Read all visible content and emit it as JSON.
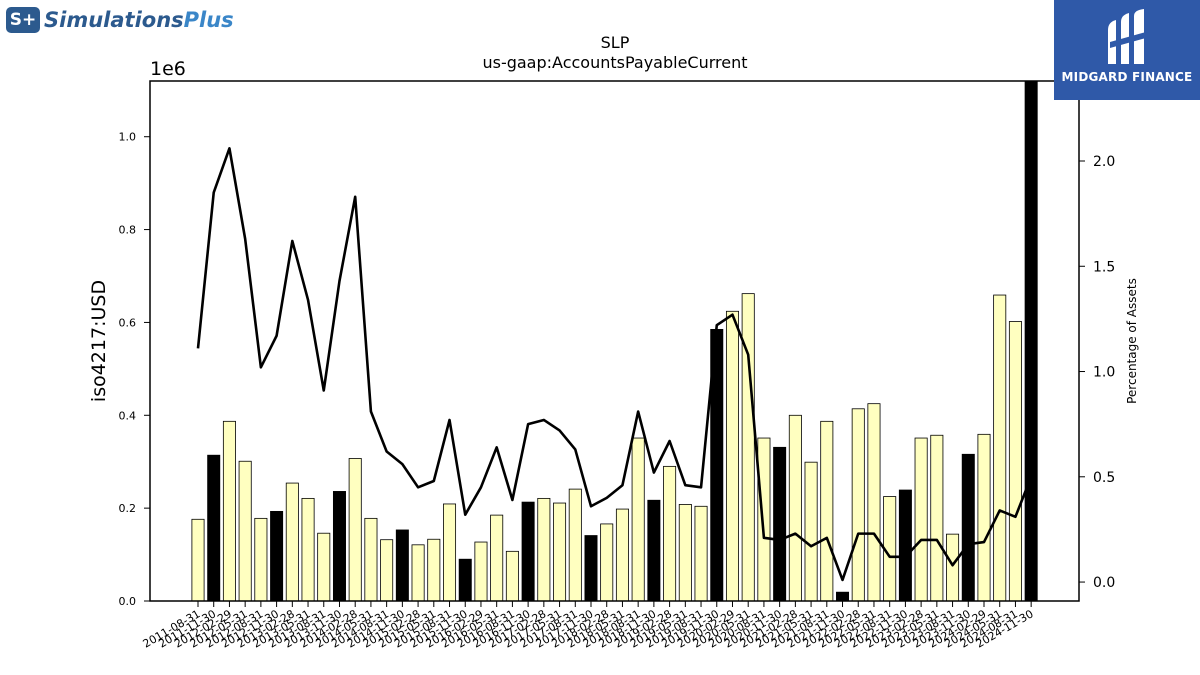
{
  "logos": {
    "left_badge": "S+",
    "left_name_1": "Simulations",
    "left_name_2": "Plus",
    "right_name": "MIDGARD FINANCE"
  },
  "colors": {
    "bar_fill": "#ffffc0",
    "bar_highlight": "#000000",
    "line": "#000000",
    "axis": "#000000",
    "brand_blue": "#2f59a8"
  },
  "chart_data": {
    "type": "bar",
    "title": "SLP",
    "subtitle": "us-gaap:AccountsPayableCurrent",
    "ylabel": "iso4217:USD",
    "y_offset_label": "1e6",
    "y2label": "Percentage of Assets",
    "ylim": [
      0,
      1.12
    ],
    "y2lim": [
      -0.09,
      2.38
    ],
    "yticks": [
      "0.0",
      "0.2",
      "0.4",
      "0.6",
      "0.8",
      "1.0"
    ],
    "y2ticks": [
      "0.0",
      "0.5",
      "1.0",
      "1.5",
      "2.0"
    ],
    "grid": false,
    "categories": [
      "2011-08-31",
      "2011-11-30",
      "2012-02-29",
      "2012-05-31",
      "2012-08-31",
      "2012-11-30",
      "2013-02-28",
      "2013-05-31",
      "2013-08-31",
      "2013-11-30",
      "2014-02-28",
      "2014-05-31",
      "2014-08-31",
      "2014-11-30",
      "2015-02-28",
      "2015-05-31",
      "2015-08-31",
      "2015-11-30",
      "2016-02-29",
      "2016-05-31",
      "2016-08-31",
      "2016-11-30",
      "2017-02-28",
      "2017-05-31",
      "2017-08-31",
      "2017-11-30",
      "2018-02-28",
      "2018-05-31",
      "2018-08-31",
      "2018-11-30",
      "2019-02-28",
      "2019-05-31",
      "2019-08-31",
      "2019-11-30",
      "2020-02-29",
      "2020-05-31",
      "2020-08-31",
      "2020-11-30",
      "2021-02-28",
      "2021-05-31",
      "2021-08-31",
      "2021-11-30",
      "2022-02-28",
      "2022-05-31",
      "2022-08-31",
      "2022-11-30",
      "2023-02-28",
      "2023-05-31",
      "2023-08-31",
      "2023-11-30",
      "2024-02-29",
      "2024-05-31",
      "2024-08-31",
      "2024-11-30"
    ],
    "series": [
      {
        "type": "bar",
        "values": [
          0.176,
          0.314,
          0.387,
          0.301,
          0.178,
          0.193,
          0.254,
          0.221,
          0.146,
          0.236,
          0.307,
          0.178,
          0.132,
          0.153,
          0.121,
          0.133,
          0.209,
          0.09,
          0.127,
          0.185,
          0.107,
          0.213,
          0.221,
          0.211,
          0.241,
          0.141,
          0.166,
          0.198,
          0.351,
          0.217,
          0.29,
          0.208,
          0.204,
          0.585,
          0.624,
          0.662,
          0.351,
          0.331,
          0.4,
          0.299,
          0.387,
          0.019,
          0.414,
          0.425,
          0.225,
          0.239,
          0.351,
          0.357,
          0.144,
          0.316,
          0.359,
          0.659,
          0.602,
          1.12
        ],
        "highlight": [
          false,
          true,
          false,
          false,
          false,
          true,
          false,
          false,
          false,
          true,
          false,
          false,
          false,
          true,
          false,
          false,
          false,
          true,
          false,
          false,
          false,
          true,
          false,
          false,
          false,
          true,
          false,
          false,
          false,
          true,
          false,
          false,
          false,
          true,
          false,
          false,
          false,
          true,
          false,
          false,
          false,
          true,
          false,
          false,
          false,
          true,
          false,
          false,
          false,
          true,
          false,
          false,
          false,
          true
        ]
      },
      {
        "type": "line",
        "axis": "right",
        "values": [
          1.11,
          1.85,
          2.06,
          1.63,
          1.02,
          1.17,
          1.62,
          1.34,
          0.91,
          1.43,
          1.83,
          0.81,
          0.62,
          0.56,
          0.45,
          0.48,
          0.77,
          0.32,
          0.45,
          0.64,
          0.39,
          0.75,
          0.77,
          0.72,
          0.63,
          0.36,
          0.4,
          0.46,
          0.81,
          0.52,
          0.67,
          0.46,
          0.45,
          1.22,
          1.27,
          1.08,
          0.21,
          0.2,
          0.23,
          0.17,
          0.21,
          0.01,
          0.23,
          0.23,
          0.12,
          0.12,
          0.2,
          0.2,
          0.08,
          0.18,
          0.19,
          0.34,
          0.31,
          0.5
        ]
      }
    ]
  }
}
